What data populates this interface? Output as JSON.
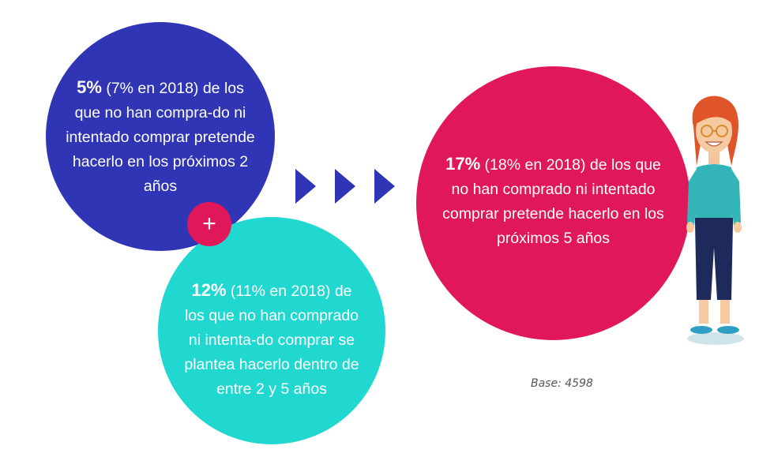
{
  "circles": {
    "left_top": {
      "bold": "5%",
      "text": " (7% en 2018) de los que no han compra-do ni intentado comprar pretende hacerlo en los próximos 2 años"
    },
    "left_bottom": {
      "bold": "12%",
      "text": " (11% en 2018) de los que no han comprado ni intenta-do comprar se plantea hacerlo dentro de entre 2 y 5 años"
    },
    "right": {
      "bold": "17%",
      "text": " (18% en 2018) de los que no han comprado ni intentado comprar pretende hacerlo en los próximos 5 años"
    }
  },
  "plus_sign": "+",
  "base_note": "Base: 4598",
  "colors": {
    "blue": "#3035b5",
    "teal": "#21d8d0",
    "pink": "#e0185a",
    "arrow": "#3035b5"
  },
  "icons": [
    "chevron-right-icon",
    "woman-illustration"
  ]
}
